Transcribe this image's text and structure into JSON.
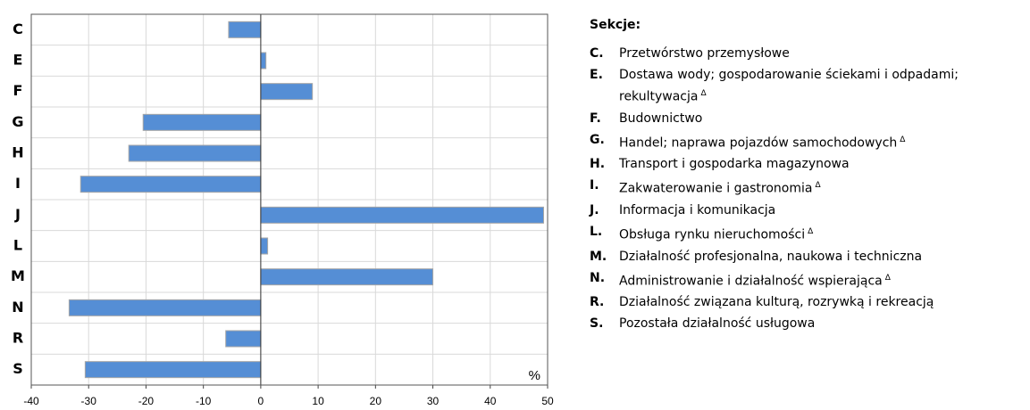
{
  "chart_data": {
    "type": "barh",
    "categories": [
      "C",
      "E",
      "F",
      "G",
      "H",
      "I",
      "J",
      "L",
      "M",
      "N",
      "R",
      "S"
    ],
    "values": [
      -5.6,
      0.9,
      9.0,
      -20.5,
      -23.0,
      -31.4,
      49.3,
      1.2,
      30.0,
      -33.4,
      -6.1,
      -30.6
    ],
    "color": "#558ed5",
    "xlim": [
      -40,
      50
    ],
    "xticks": [
      -40,
      -30,
      -20,
      -10,
      0,
      10,
      20,
      30,
      40,
      50
    ],
    "grid": true,
    "unit_label": "%"
  },
  "legend": {
    "title": "Sekcje:",
    "items": [
      {
        "code": "C.",
        "text": "Przetwórstwo przemysłowe"
      },
      {
        "code": "E.",
        "text": "Dostawa wody; gospodarowanie ściekami i odpadami; rekultywacja",
        "note": "Δ"
      },
      {
        "code": "F.",
        "text": "Budownictwo"
      },
      {
        "code": "G.",
        "text": "Handel; naprawa pojazdów samochodowych",
        "note": "Δ"
      },
      {
        "code": "H.",
        "text": "Transport i gospodarka magazynowa"
      },
      {
        "code": "I.",
        "text": "Zakwaterowanie i gastronomia",
        "note": "Δ"
      },
      {
        "code": "J.",
        "text": "Informacja i komunikacja"
      },
      {
        "code": "L.",
        "text": "Obsługa rynku nieruchomości",
        "note": "Δ"
      },
      {
        "code": "M.",
        "text": "Działalność profesjonalna, naukowa i techniczna"
      },
      {
        "code": "N.",
        "text": "Administrowanie i działalność wspierająca",
        "note": "Δ"
      },
      {
        "code": "R.",
        "text": "Działalność związana kulturą, rozrywką i rekreacją"
      },
      {
        "code": "S.",
        "text": "Pozostała działalność usługowa"
      }
    ]
  }
}
